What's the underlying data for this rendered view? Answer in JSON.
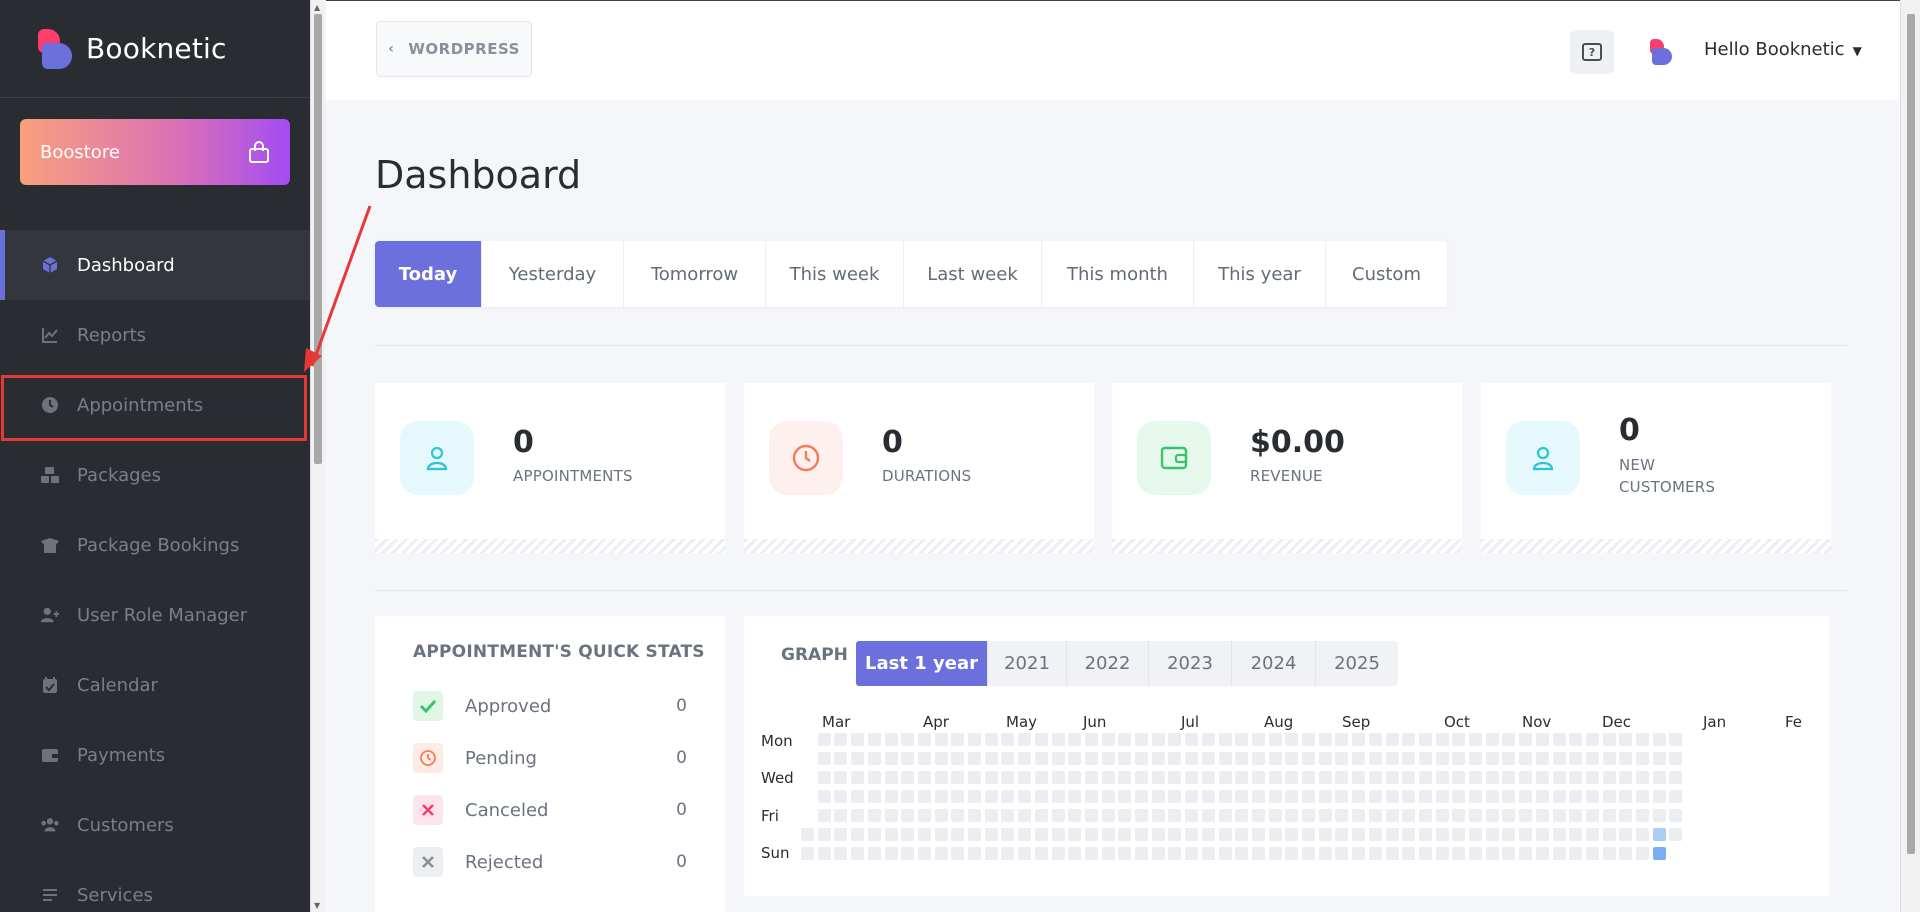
{
  "app": {
    "name": "Booknetic"
  },
  "sidebar": {
    "boostore_label": "Boostore",
    "items": [
      {
        "label": "Dashboard",
        "icon": "cube-icon",
        "active": true
      },
      {
        "label": "Reports",
        "icon": "chart-line-icon"
      },
      {
        "label": "Appointments",
        "icon": "clock-icon"
      },
      {
        "label": "Packages",
        "icon": "boxes-icon"
      },
      {
        "label": "Package Bookings",
        "icon": "box-open-icon"
      },
      {
        "label": "User Role Manager",
        "icon": "user-plus-icon"
      },
      {
        "label": "Calendar",
        "icon": "calendar-check-icon"
      },
      {
        "label": "Payments",
        "icon": "wallet-icon"
      },
      {
        "label": "Customers",
        "icon": "users-icon"
      },
      {
        "label": "Services",
        "icon": "list-icon"
      }
    ]
  },
  "header": {
    "wordpress_label": "WORDPRESS",
    "greeting": "Hello Booknetic"
  },
  "main": {
    "title": "Dashboard",
    "tabs": [
      "Today",
      "Yesterday",
      "Tomorrow",
      "This week",
      "Last week",
      "This month",
      "This year",
      "Custom"
    ],
    "active_tab": "Today",
    "stats": [
      {
        "value": "0",
        "label": "APPOINTMENTS",
        "icon": "user-icon",
        "color": "#2bc4d8",
        "bg": "#e5f8fb"
      },
      {
        "value": "0",
        "label": "DURATIONS",
        "icon": "clock-icon",
        "color": "#f57c5a",
        "bg": "#fef0ec"
      },
      {
        "value": "$0.00",
        "label": "REVENUE",
        "icon": "wallet-icon",
        "color": "#37c46b",
        "bg": "#e6f8ec"
      },
      {
        "value": "0",
        "label_lines": [
          "NEW",
          "CUSTOMERS"
        ],
        "icon": "user-icon",
        "color": "#2bc4d8",
        "bg": "#e5f8fb"
      }
    ]
  },
  "quick_stats": {
    "title": "APPOINTMENT'S QUICK STATS",
    "rows": [
      {
        "label": "Approved",
        "value": "0",
        "icon": "check-icon",
        "color": "#37c46b",
        "bg": "#e2f6e8"
      },
      {
        "label": "Pending",
        "value": "0",
        "icon": "clock-icon",
        "color": "#f57c5a",
        "bg": "#fdebe5"
      },
      {
        "label": "Canceled",
        "value": "0",
        "icon": "x-icon",
        "color": "#f0416d",
        "bg": "#fde4ea"
      },
      {
        "label": "Rejected",
        "value": "0",
        "icon": "x-icon",
        "color": "#8a9099",
        "bg": "#eceef1"
      }
    ]
  },
  "graph": {
    "label": "GRAPH",
    "tabs": [
      "Last 1 year",
      "2021",
      "2022",
      "2023",
      "2024",
      "2025"
    ],
    "active_tab": "Last 1 year",
    "months": [
      "Mar",
      "Apr",
      "May",
      "Jun",
      "Jul",
      "Aug",
      "Sep",
      "Oct",
      "Nov",
      "Dec",
      "Jan",
      "Fe"
    ],
    "days": [
      "Mon",
      "Wed",
      "Fri",
      "Sun"
    ]
  }
}
